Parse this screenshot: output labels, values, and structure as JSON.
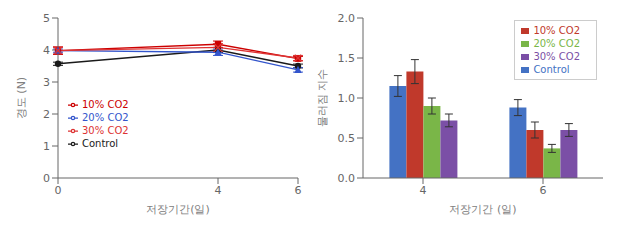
{
  "chart_data": [
    {
      "type": "line",
      "x": [
        0,
        4,
        6
      ],
      "xlabel": "저장기간(일)",
      "ylabel": "경도 (N)",
      "xlim": [
        0,
        6
      ],
      "xticks": [
        0,
        4,
        6
      ],
      "ylim": [
        0,
        5
      ],
      "yticks": [
        0,
        1,
        2,
        3,
        4,
        5
      ],
      "grid": false,
      "legend": "left",
      "series": [
        {
          "name": "Control",
          "color": "#1a1a1a",
          "marker": "circle",
          "line_style": "solid",
          "values": [
            3.57,
            4.0,
            3.5
          ],
          "yerr": [
            0.05,
            0.08,
            0.06
          ]
        },
        {
          "name": "10% CO2",
          "color": "#cc0000",
          "marker": "square",
          "line_style": "solid",
          "values": [
            3.98,
            4.18,
            3.73
          ],
          "yerr": [
            0.12,
            0.1,
            0.07
          ]
        },
        {
          "name": "20% CO2",
          "color": "#3355cc",
          "marker": "triangle",
          "line_style": "solid",
          "values": [
            3.98,
            3.93,
            3.38
          ],
          "yerr": [
            0.05,
            0.1,
            0.07
          ]
        },
        {
          "name": "30% CO2",
          "color": "#dd3333",
          "marker": "x",
          "line_style": "solid",
          "values": [
            3.98,
            4.08,
            3.75
          ],
          "yerr": [
            0.1,
            0.12,
            0.08
          ]
        }
      ]
    },
    {
      "type": "bar",
      "categories": [
        "4",
        "6"
      ],
      "xlabel": "저장기간 (일)",
      "ylabel": "물러짐 지수",
      "ylim": [
        0.0,
        2.0
      ],
      "yticks": [
        {
          "value": 0,
          "label": "0.0"
        },
        0.5,
        {
          "value": 1,
          "label": "1.0"
        },
        1.5,
        {
          "value": 2,
          "label": "2.0"
        }
      ],
      "grid": false,
      "legend": "upper right",
      "series": [
        {
          "name": "Control",
          "color": "#4472c4",
          "values": [
            1.15,
            0.88
          ],
          "yerr": [
            0.13,
            0.1
          ]
        },
        {
          "name": "10% CO2",
          "color": "#c0392b",
          "values": [
            1.33,
            0.6
          ],
          "yerr": [
            0.15,
            0.1
          ]
        },
        {
          "name": "20% CO2",
          "color": "#7ab648",
          "values": [
            0.9,
            0.37
          ],
          "yerr": [
            0.1,
            0.05
          ]
        },
        {
          "name": "30% CO2",
          "color": "#7b4fa6",
          "values": [
            0.72,
            0.6
          ],
          "yerr": [
            0.08,
            0.08
          ]
        }
      ]
    }
  ]
}
